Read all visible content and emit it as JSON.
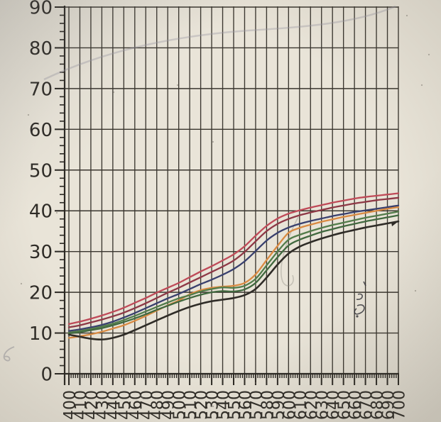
{
  "figure": {
    "paper_color": "#e9e4d8",
    "grid_color": "#3a362f",
    "axis_color": "#2b2823",
    "label_color": "#2e2b26"
  },
  "y_axis": {
    "labels": [
      "0",
      "10",
      "20",
      "30",
      "40",
      "50",
      "60",
      "70",
      "80",
      "90"
    ],
    "min": 0,
    "max": 90,
    "major_step": 10,
    "minor_step": 2
  },
  "x_axis": {
    "labels": [
      "400",
      "410",
      "420",
      "430",
      "440",
      "450",
      "460",
      "470",
      "480",
      "490",
      "500",
      "510",
      "520",
      "530",
      "540",
      "550",
      "560",
      "570",
      "580",
      "590",
      "600",
      "610",
      "620",
      "630",
      "640",
      "650",
      "660",
      "670",
      "680",
      "690",
      "700"
    ],
    "min": 400,
    "max": 700,
    "major_step": 10,
    "minor_step": 2,
    "label_rotation_deg": -90
  },
  "chart_data": {
    "type": "line",
    "title": "",
    "xlabel": "",
    "ylabel": "",
    "xlim": [
      400,
      700
    ],
    "ylim": [
      0,
      90
    ],
    "grid": "on",
    "legend": "none",
    "x": [
      400,
      410,
      420,
      430,
      440,
      450,
      460,
      470,
      480,
      490,
      500,
      510,
      520,
      530,
      540,
      550,
      560,
      570,
      580,
      590,
      600,
      610,
      620,
      630,
      640,
      650,
      660,
      670,
      680,
      690,
      700
    ],
    "series": [
      {
        "name": "light-red",
        "color": "#bf4a58",
        "values": [
          12.2,
          12.8,
          13.5,
          14.3,
          15.2,
          16.2,
          17.4,
          18.6,
          19.9,
          21.1,
          22.3,
          23.7,
          25.1,
          26.4,
          27.8,
          29.3,
          31.3,
          33.9,
          36.3,
          38.1,
          39.3,
          40.1,
          40.8,
          41.4,
          42.0,
          42.5,
          43.0,
          43.4,
          43.7,
          44.0,
          44.3
        ]
      },
      {
        "name": "dark-red",
        "color": "#8e3846",
        "values": [
          11.4,
          11.9,
          12.6,
          13.3,
          14.1,
          15.0,
          16.1,
          17.3,
          18.6,
          19.9,
          21.1,
          22.4,
          23.7,
          25.0,
          26.3,
          27.8,
          29.9,
          32.5,
          35.0,
          36.8,
          38.0,
          38.9,
          39.6,
          40.2,
          40.8,
          41.3,
          41.8,
          42.2,
          42.6,
          42.9,
          43.2
        ]
      },
      {
        "name": "blue",
        "color": "#39406e",
        "values": [
          10.5,
          10.9,
          11.4,
          12.0,
          12.8,
          13.8,
          14.9,
          16.1,
          17.3,
          18.5,
          19.6,
          20.8,
          22.0,
          23.1,
          24.3,
          25.7,
          27.6,
          30.1,
          32.7,
          34.6,
          35.9,
          36.8,
          37.5,
          38.1,
          38.7,
          39.2,
          39.7,
          40.1,
          40.5,
          40.9,
          41.3
        ]
      },
      {
        "name": "orange",
        "color": "#d98a42",
        "values": [
          8.8,
          9.2,
          9.7,
          10.3,
          11.1,
          11.9,
          13.0,
          14.2,
          15.5,
          16.8,
          18.0,
          19.5,
          20.5,
          21.1,
          21.4,
          21.6,
          22.3,
          24.4,
          27.9,
          31.4,
          34.6,
          35.8,
          36.6,
          37.3,
          37.9,
          38.5,
          39.0,
          39.5,
          40.0,
          40.5,
          40.9
        ]
      },
      {
        "name": "green",
        "color": "#527c4a",
        "values": [
          10.1,
          10.5,
          11.0,
          11.6,
          12.3,
          13.2,
          14.2,
          15.3,
          16.4,
          17.5,
          18.5,
          19.3,
          20.2,
          20.8,
          21.2,
          21.1,
          21.6,
          23.3,
          26.6,
          30.0,
          32.9,
          34.1,
          35.0,
          35.8,
          36.5,
          37.1,
          37.7,
          38.3,
          38.8,
          39.3,
          39.8
        ]
      },
      {
        "name": "dark-green",
        "color": "#41693f",
        "values": [
          9.9,
          10.2,
          10.7,
          11.2,
          11.9,
          12.7,
          13.6,
          14.6,
          15.7,
          16.7,
          17.7,
          18.6,
          19.4,
          20.0,
          20.3,
          20.2,
          20.7,
          22.3,
          25.4,
          28.6,
          31.5,
          32.9,
          33.9,
          34.8,
          35.5,
          36.2,
          36.8,
          37.4,
          37.9,
          38.4,
          38.9
        ]
      },
      {
        "name": "black",
        "color": "#2f2c27",
        "values": [
          9.6,
          9.1,
          8.6,
          8.4,
          8.8,
          9.6,
          10.7,
          11.9,
          13.1,
          14.3,
          15.4,
          16.4,
          17.2,
          17.8,
          18.2,
          18.6,
          19.3,
          20.8,
          23.6,
          26.8,
          29.5,
          31.2,
          32.3,
          33.2,
          34.0,
          34.7,
          35.3,
          35.9,
          36.4,
          36.9,
          37.4
        ]
      }
    ]
  }
}
